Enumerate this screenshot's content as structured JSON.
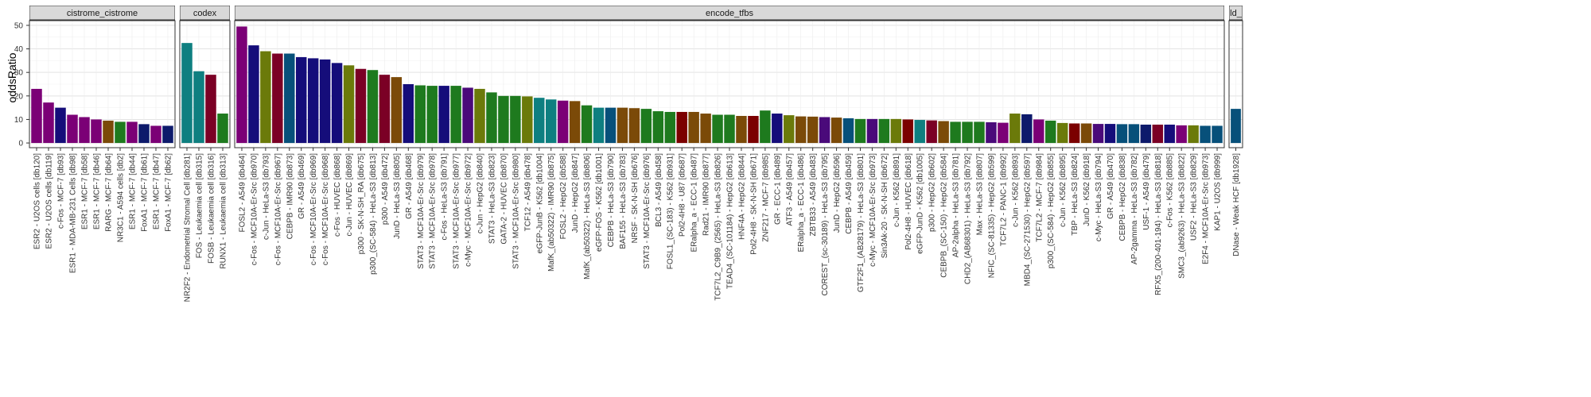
{
  "chart_data": {
    "type": "bar",
    "ylabel": "oddsRatio",
    "xlabel": "",
    "ylim": [
      -2,
      52
    ],
    "yticks": [
      0,
      10,
      20,
      30,
      40,
      50
    ],
    "grid": true,
    "legend": "none",
    "facets": [
      {
        "name": "cistrome_cistrome",
        "bars": [
          {
            "label": "ESR2 - U2OS cells [db120]",
            "value": 23,
            "color": "#7B0076"
          },
          {
            "label": "ESR2 - U2OS cells [db119]",
            "value": 17.2,
            "color": "#7B0076"
          },
          {
            "label": "c-Fos - MCF-7 [db93]",
            "value": 15,
            "color": "#150D7A"
          },
          {
            "label": "ESR1 - MDA-MB-231 Cells [db98]",
            "value": 12,
            "color": "#7B0076"
          },
          {
            "label": "ESR1 - MCF-7 [db58]",
            "value": 11,
            "color": "#7B0076"
          },
          {
            "label": "ESR1 - MCF-7 [db46]",
            "value": 10,
            "color": "#7B0076"
          },
          {
            "label": "RARG - MCF-7 [db64]",
            "value": 9.5,
            "color": "#7B4A08"
          },
          {
            "label": "NR3C1 - A594 cells [db2]",
            "value": 9,
            "color": "#1E7A1E"
          },
          {
            "label": "ESR1 - MCF-7 [db44]",
            "value": 9,
            "color": "#7B0076"
          },
          {
            "label": "FoxA1 - MCF-7 [db61]",
            "value": 8,
            "color": "#0D1A6B"
          },
          {
            "label": "ESR1 - MCF-7 [db47]",
            "value": 7.3,
            "color": "#7B0076"
          },
          {
            "label": "FoxA1 - MCF-7 [db62]",
            "value": 7.3,
            "color": "#0D1A6B"
          }
        ]
      },
      {
        "name": "codex",
        "bars": [
          {
            "label": "NR2F2 - Endometrial Stromal Cell [db281]",
            "value": 42.5,
            "color": "#0E7F80"
          },
          {
            "label": "FOS - Leukaemia cell [db315]",
            "value": 30.5,
            "color": "#0E7F80"
          },
          {
            "label": "FOSB - Leukaemia cell [db316]",
            "value": 29,
            "color": "#7B0025"
          },
          {
            "label": "RUNX1 - Leukaemia cell [db313]",
            "value": 12.5,
            "color": "#1E7A1E"
          }
        ]
      },
      {
        "name": "encode_tfbs",
        "bars": [
          {
            "label": "FOSL2 - A549 [db464]",
            "value": 49.5,
            "color": "#7B0076"
          },
          {
            "label": "c-Fos - MCF10A-Er-Src [db970]",
            "value": 41.5,
            "color": "#150D7A"
          },
          {
            "label": "c-Jun - HeLa-S3 [db793]",
            "value": 39,
            "color": "#6B7A0A"
          },
          {
            "label": "c-Fos - MCF10A-Er-Src [db967]",
            "value": 38,
            "color": "#7B0025"
          },
          {
            "label": "CEBPB - IMR90 [db873]",
            "value": 38,
            "color": "#07507A"
          },
          {
            "label": "GR - A549 [db469]",
            "value": 36.5,
            "color": "#150D7A"
          },
          {
            "label": "c-Fos - MCF10A-Er-Src [db969]",
            "value": 36,
            "color": "#150D7A"
          },
          {
            "label": "c-Fos - MCF10A-Er-Src [db968]",
            "value": 35.5,
            "color": "#150D7A"
          },
          {
            "label": "c-Fos - HUVEC [db868]",
            "value": 34,
            "color": "#150D7A"
          },
          {
            "label": "c-Jun - HUVEC [db869]",
            "value": 33,
            "color": "#6B7A0A"
          },
          {
            "label": "p300 - SK-N-SH_RA [db675]",
            "value": 31.5,
            "color": "#7B0025"
          },
          {
            "label": "p300_(SC-584) - HeLa-S3 [db813]",
            "value": 31,
            "color": "#1E7A1E"
          },
          {
            "label": "p300 - A549 [db472]",
            "value": 29,
            "color": "#7B0025"
          },
          {
            "label": "JunD - HeLa-S3 [db805]",
            "value": 28,
            "color": "#7B4A08"
          },
          {
            "label": "GR - A549 [db468]",
            "value": 25,
            "color": "#150D7A"
          },
          {
            "label": "STAT3 - MCF10A-Er-Src [db979]",
            "value": 24.5,
            "color": "#1E7A1E"
          },
          {
            "label": "STAT3 - MCF10A-Er-Src [db978]",
            "value": 24.3,
            "color": "#1E7A1E"
          },
          {
            "label": "c-Fos - HeLa-S3 [db791]",
            "value": 24.3,
            "color": "#150D7A"
          },
          {
            "label": "STAT3 - MCF10A-Er-Src [db977]",
            "value": 24.3,
            "color": "#1E7A1E"
          },
          {
            "label": "c-Myc - MCF10A-Er-Src [db972]",
            "value": 23.5,
            "color": "#4A0A7A"
          },
          {
            "label": "c-Jun - HepG2 [db840]",
            "value": 23,
            "color": "#6B7A0A"
          },
          {
            "label": "STAT3 - HeLa-S3 [db823]",
            "value": 21.5,
            "color": "#1E7A1E"
          },
          {
            "label": "GATA-2 - HUVEC [db870]",
            "value": 20,
            "color": "#1E7A1E"
          },
          {
            "label": "STAT3 - MCF10A-Er-Src [db980]",
            "value": 20,
            "color": "#1E7A1E"
          },
          {
            "label": "TCF12 - A549 [db478]",
            "value": 19.8,
            "color": "#6B7A0A"
          },
          {
            "label": "eGFP-JunB - K562 [db1004]",
            "value": 19.2,
            "color": "#0E7F80"
          },
          {
            "label": "MafK_(ab50322) - IMR90 [db875]",
            "value": 18.5,
            "color": "#0E7F80"
          },
          {
            "label": "FOSL2 - HepG2 [db588]",
            "value": 18,
            "color": "#7B0076"
          },
          {
            "label": "JunD - HepG2 [db847]",
            "value": 17.8,
            "color": "#7B4A08"
          },
          {
            "label": "MafK_(ab50322) - HeLa-S3 [db806]",
            "value": 16,
            "color": "#1E7A1E"
          },
          {
            "label": "eGFP-FOS - K562 [db1001]",
            "value": 15,
            "color": "#0E7F80"
          },
          {
            "label": "CEBPB - HeLa-S3 [db790]",
            "value": 15,
            "color": "#07507A"
          },
          {
            "label": "BAF155 - HeLa-S3 [db783]",
            "value": 15,
            "color": "#7B4A08"
          },
          {
            "label": "NRSF - SK-N-SH [db676]",
            "value": 14.8,
            "color": "#7B4A08"
          },
          {
            "label": "STAT3 - MCF10A-Er-Src [db976]",
            "value": 14.5,
            "color": "#1E7A1E"
          },
          {
            "label": "BCL3 - A549 [db458]",
            "value": 13.5,
            "color": "#1E7A1E"
          },
          {
            "label": "FOSL1_(SC-183) - K562 [db931]",
            "value": 13.2,
            "color": "#1E7A1E"
          },
          {
            "label": "Pol2-4H8 - U87 [db687]",
            "value": 13.2,
            "color": "#7B0000"
          },
          {
            "label": "ERalpha_a - ECC-1 [db487]",
            "value": 13.2,
            "color": "#7B4A08"
          },
          {
            "label": "Rad21 - IMR90 [db877]",
            "value": 12.5,
            "color": "#7B4A08"
          },
          {
            "label": "TCF7L2_C9B9_(2565) - HeLa-S3 [db826]",
            "value": 12,
            "color": "#1E7A1E"
          },
          {
            "label": "TEAD4_(SC-101184) - HepG2 [db613]",
            "value": 12,
            "color": "#1E7A1E"
          },
          {
            "label": "HNF4A - HepG2 [db844]",
            "value": 11.5,
            "color": "#7B4A08"
          },
          {
            "label": "Pol2-4H8 - SK-N-SH [db671]",
            "value": 11.5,
            "color": "#7B0000"
          },
          {
            "label": "ZNF217 - MCF-7 [db985]",
            "value": 13.8,
            "color": "#1E7A1E"
          },
          {
            "label": "GR - ECC-1 [db489]",
            "value": 12.5,
            "color": "#150D7A"
          },
          {
            "label": "ATF3 - A549 [db457]",
            "value": 11.8,
            "color": "#6B7A0A"
          },
          {
            "label": "ERalpha_a - ECC-1 [db486]",
            "value": 11.3,
            "color": "#7B4A08"
          },
          {
            "label": "ZBTB33 - A549 [db483]",
            "value": 11.2,
            "color": "#7B4A08"
          },
          {
            "label": "COREST_(sc-30189) - HeLa-S3 [db795]",
            "value": 11,
            "color": "#4A0A7A"
          },
          {
            "label": "JunD - HepG2 [db596]",
            "value": 10.8,
            "color": "#7B4A08"
          },
          {
            "label": "CEBPB - A549 [db459]",
            "value": 10.5,
            "color": "#07507A"
          },
          {
            "label": "GTF2F1_(AB28179) - HeLa-S3 [db801]",
            "value": 10.2,
            "color": "#1E7A1E"
          },
          {
            "label": "c-Myc - MCF10A-Er-Src [db973]",
            "value": 10.2,
            "color": "#4A0A7A"
          },
          {
            "label": "Sin3Ak-20 - SK-N-SH [db672]",
            "value": 10.2,
            "color": "#1E7A1E"
          },
          {
            "label": "c-Jun - K562 [db891]",
            "value": 10.2,
            "color": "#6B7A0A"
          },
          {
            "label": "Pol2-4H8 - HUVEC [db618]",
            "value": 10,
            "color": "#7B0000"
          },
          {
            "label": "eGFP-JunD - K562 [db1005]",
            "value": 9.8,
            "color": "#0E7F80"
          },
          {
            "label": "p300 - HepG2 [db602]",
            "value": 9.6,
            "color": "#7B0025"
          },
          {
            "label": "CEBPB_(SC-150) - HepG2 [db584]",
            "value": 9.3,
            "color": "#7B4A08"
          },
          {
            "label": "AP-2alpha - HeLa-S3 [db781]",
            "value": 9,
            "color": "#1E7A1E"
          },
          {
            "label": "CHD2_(AB68301) - HeLa-S3 [db792]",
            "value": 9,
            "color": "#1E7A1E"
          },
          {
            "label": "Max - HeLa-S3 [db807]",
            "value": 9,
            "color": "#1E7A1E"
          },
          {
            "label": "NFIC_(SC-81335) - HepG2 [db599]",
            "value": 8.8,
            "color": "#4A0A7A"
          },
          {
            "label": "TCF7L2 - PANC-1 [db992]",
            "value": 8.6,
            "color": "#7B0076"
          },
          {
            "label": "c-Jun - K562 [db893]",
            "value": 12.5,
            "color": "#6B7A0A"
          },
          {
            "label": "MBD4_(SC-271530) - HepG2 [db597]",
            "value": 12.2,
            "color": "#0D1A6B"
          },
          {
            "label": "TCF7L2 - MCF-7 [db984]",
            "value": 10,
            "color": "#7B0076"
          },
          {
            "label": "p300_(SC-584) - HepG2 [db855]",
            "value": 9.5,
            "color": "#1E7A1E"
          },
          {
            "label": "c-Jun - K562 [db895]",
            "value": 8.5,
            "color": "#6B7A0A"
          },
          {
            "label": "TBP - HeLa-S3 [db824]",
            "value": 8.3,
            "color": "#7B0000"
          },
          {
            "label": "JunD - K562 [db918]",
            "value": 8.3,
            "color": "#7B4A08"
          },
          {
            "label": "c-Myc - HeLa-S3 [db794]",
            "value": 8.1,
            "color": "#4A0A7A"
          },
          {
            "label": "GR - A549 [db470]",
            "value": 8.1,
            "color": "#150D7A"
          },
          {
            "label": "CEBPB - HepG2 [db838]",
            "value": 8,
            "color": "#07507A"
          },
          {
            "label": "AP-2gamma - HeLa-S3 [db782]",
            "value": 8,
            "color": "#07507A"
          },
          {
            "label": "USF-1 - A549 [db479]",
            "value": 7.8,
            "color": "#0D1A6B"
          },
          {
            "label": "RFX5_(200-401-194) - HeLa-S3 [db818]",
            "value": 7.8,
            "color": "#7B0025"
          },
          {
            "label": "c-Fos - K562 [db885]",
            "value": 7.8,
            "color": "#150D7A"
          },
          {
            "label": "SMC3_(ab9263) - HeLa-S3 [db822]",
            "value": 7.5,
            "color": "#7B0076"
          },
          {
            "label": "USF2 - HeLa-S3 [db829]",
            "value": 7.5,
            "color": "#6B7A0A"
          },
          {
            "label": "E2F4 - MCF10A-Er-Src [db973]",
            "value": 7.3,
            "color": "#07507A"
          },
          {
            "label": "KAP1 - U2OS [db999]",
            "value": 7.3,
            "color": "#07507A"
          }
        ]
      },
      {
        "name": "ld_",
        "bars": [
          {
            "label": "DNase - Weak HCF [db1928]",
            "value": 14.5,
            "color": "#07507A"
          }
        ]
      }
    ]
  }
}
